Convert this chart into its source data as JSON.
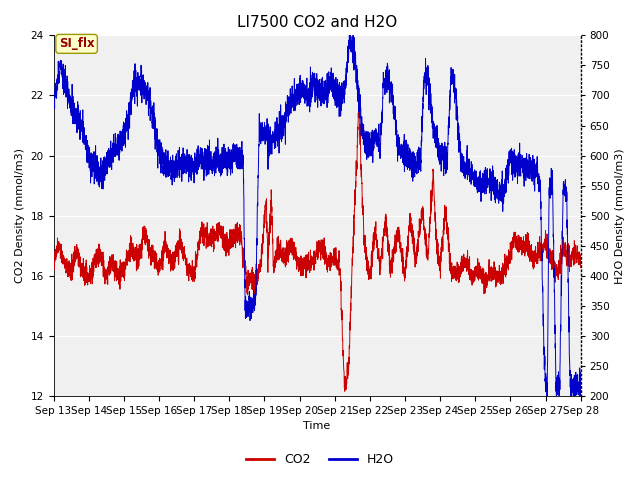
{
  "title": "LI7500 CO2 and H2O",
  "xlabel": "Time",
  "ylabel_left": "CO2 Density (mmol/m3)",
  "ylabel_right": "H2O Density (mmol/m3)",
  "xlim_days": [
    13,
    28
  ],
  "ylim_left": [
    12,
    24
  ],
  "ylim_right": [
    200,
    800
  ],
  "xtick_labels": [
    "Sep 13",
    "Sep 14",
    "Sep 15",
    "Sep 16",
    "Sep 17",
    "Sep 18",
    "Sep 19",
    "Sep 20",
    "Sep 21",
    "Sep 22",
    "Sep 23",
    "Sep 24",
    "Sep 25",
    "Sep 26",
    "Sep 27",
    "Sep 28"
  ],
  "yticks_left": [
    12,
    14,
    16,
    18,
    20,
    22,
    24
  ],
  "yticks_right": [
    200,
    250,
    300,
    350,
    400,
    450,
    500,
    550,
    600,
    650,
    700,
    750,
    800
  ],
  "co2_color": "#cc0000",
  "h2o_color": "#0000cc",
  "figure_bg": "#ffffff",
  "axes_bg": "#e8e8e8",
  "plot_bg": "#f0f0f0",
  "title_fontsize": 11,
  "label_fontsize": 8,
  "tick_fontsize": 7.5,
  "legend_fontsize": 9,
  "legend_label_co2": "CO2",
  "legend_label_h2o": "H2O",
  "annotation_text": "SI_flx",
  "annotation_box_color": "#ffffcc",
  "annotation_border_color": "#999900",
  "annotation_text_color": "#990000",
  "linewidth": 0.7
}
